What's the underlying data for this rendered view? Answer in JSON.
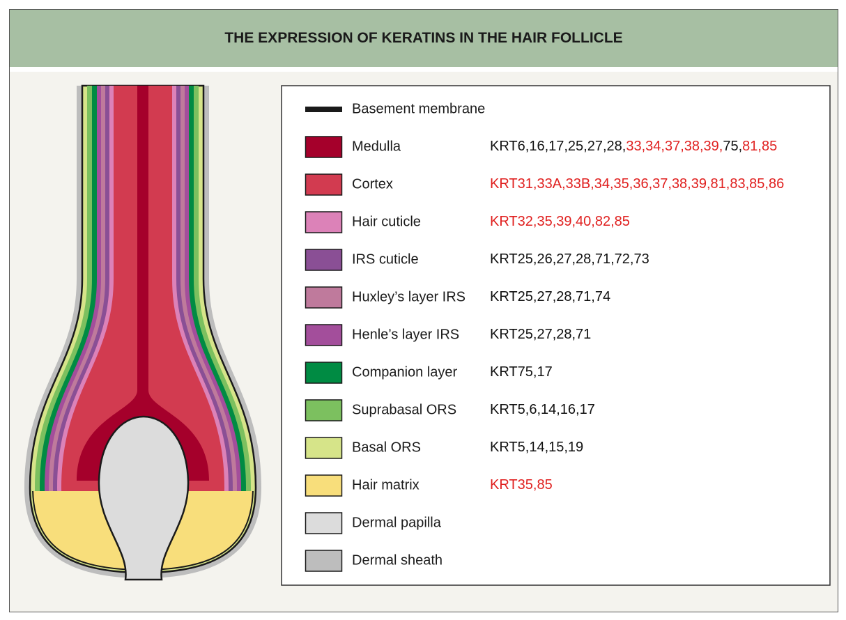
{
  "header": {
    "title": "THE EXPRESSION OF KERATINS IN THE HAIR FOLLICLE"
  },
  "legend": {
    "items": [
      {
        "label": "Basement membrane",
        "color": "#1a1a1a",
        "keratins": []
      },
      {
        "label": "Medulla",
        "color": "#a5002b",
        "keratins": [
          {
            "text": "KRT6,16,17,25,27,28,",
            "color": "#111111"
          },
          {
            "text": "33,34,37,38,39,",
            "color": "#e0201f"
          },
          {
            "text": "75,",
            "color": "#111111"
          },
          {
            "text": "81,85",
            "color": "#e0201f"
          }
        ]
      },
      {
        "label": "Cortex",
        "color": "#d23b50",
        "keratins": [
          {
            "text": "KRT31,33A,33B,34,35,36,37,38,39,81,83,85,86",
            "color": "#e0201f"
          }
        ]
      },
      {
        "label": "Hair cuticle",
        "color": "#dc82b8",
        "keratins": [
          {
            "text": "KRT32,35,39,40,82,85",
            "color": "#e0201f"
          }
        ]
      },
      {
        "label": "IRS cuticle",
        "color": "#8a4f95",
        "keratins": [
          {
            "text": "KRT25,26,27,28,71,72,73",
            "color": "#111111"
          }
        ]
      },
      {
        "label": "Huxley’s layer IRS",
        "color": "#bf7a9c",
        "keratins": [
          {
            "text": "KRT25,27,28,71,74",
            "color": "#111111"
          }
        ]
      },
      {
        "label": "Henle’s layer IRS",
        "color": "#a34e9b",
        "keratins": [
          {
            "text": "KRT25,27,28,71",
            "color": "#111111"
          }
        ]
      },
      {
        "label": "Companion layer",
        "color": "#008b43",
        "keratins": [
          {
            "text": "KRT75,17",
            "color": "#111111"
          }
        ]
      },
      {
        "label": "Suprabasal ORS",
        "color": "#7cc05f",
        "keratins": [
          {
            "text": "KRT5,6,14,16,17",
            "color": "#111111"
          }
        ]
      },
      {
        "label": "Basal ORS",
        "color": "#d6e489",
        "keratins": [
          {
            "text": "KRT5,14,15,19",
            "color": "#111111"
          }
        ]
      },
      {
        "label": "Hair matrix",
        "color": "#f8de7b",
        "keratins": [
          {
            "text": "KRT35,85",
            "color": "#e0201f"
          }
        ]
      },
      {
        "label": "Dermal papilla",
        "color": "#dcdcdc",
        "keratins": []
      },
      {
        "label": "Dermal sheath",
        "color": "#bdbdbd",
        "keratins": []
      }
    ]
  }
}
